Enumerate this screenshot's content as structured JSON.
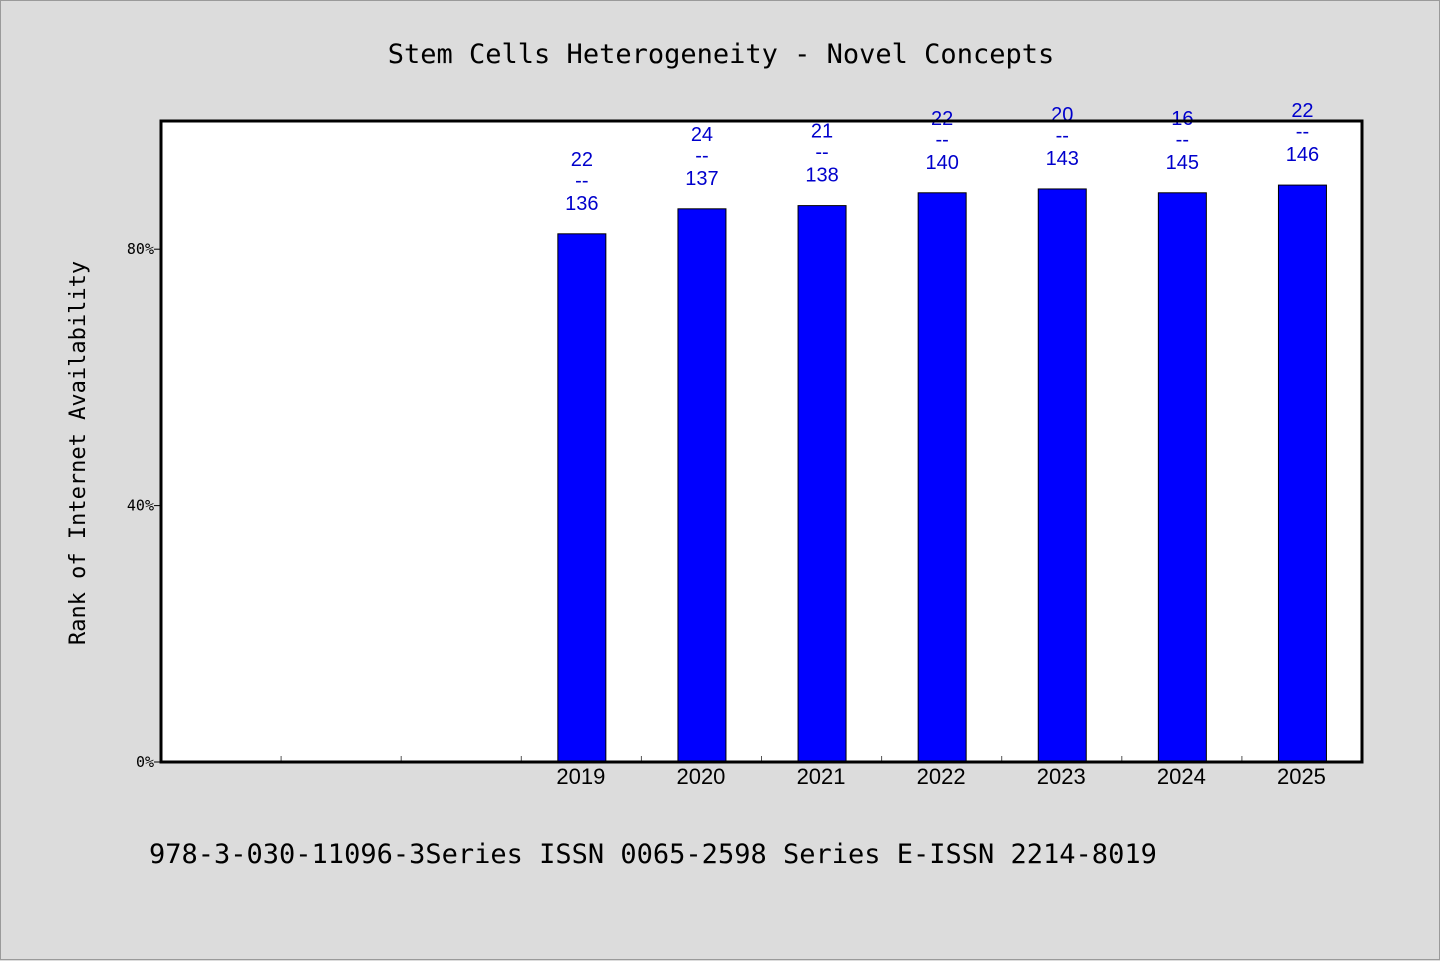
{
  "chart_data": {
    "type": "bar",
    "title": "Stem Cells Heterogeneity - Novel Concepts",
    "xlabel": "",
    "ylabel": "Rank of Internet Availability",
    "categories": [
      "",
      "",
      "",
      "2019",
      "2020",
      "2021",
      "2022",
      "2023",
      "2024",
      "2025"
    ],
    "series": [
      {
        "values": [
          null,
          null,
          null,
          82.4,
          86.3,
          86.8,
          88.8,
          89.4,
          88.8,
          90.0
        ],
        "color": "#0000ff",
        "data_labels": [
          null,
          null,
          null,
          {
            "top": "22",
            "sep": "--",
            "bottom": "136"
          },
          {
            "top": "24",
            "sep": "--",
            "bottom": "137"
          },
          {
            "top": "21",
            "sep": "--",
            "bottom": "138"
          },
          {
            "top": "22",
            "sep": "--",
            "bottom": "140"
          },
          {
            "top": "20",
            "sep": "--",
            "bottom": "143"
          },
          {
            "top": "16",
            "sep": "--",
            "bottom": "145"
          },
          {
            "top": "22",
            "sep": "--",
            "bottom": "146"
          }
        ]
      }
    ],
    "ylim": [
      0,
      100
    ],
    "yticks": [
      0,
      40,
      80
    ],
    "ytick_labels": [
      "0%",
      "40%",
      "80%"
    ],
    "grid": false,
    "legend": "none",
    "label_color": "#0000cc"
  },
  "footer": "978-3-030-11096-3Series ISSN 0065-2598 Series E-ISSN 2214-8019"
}
